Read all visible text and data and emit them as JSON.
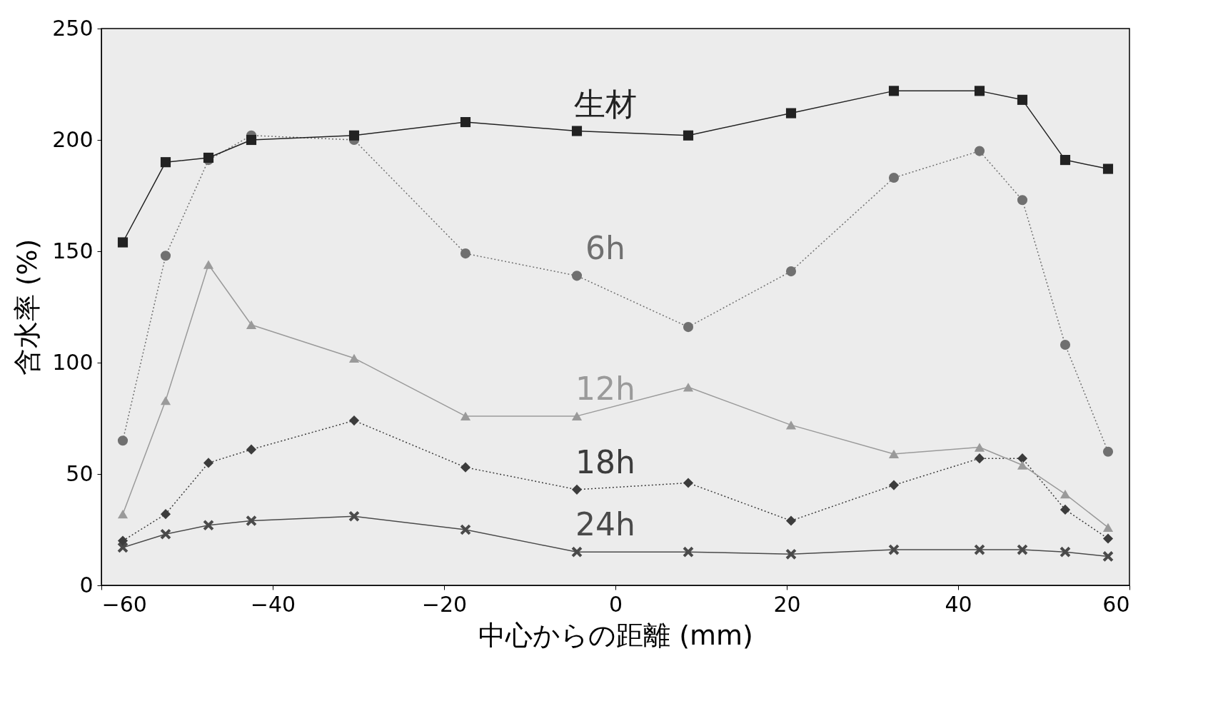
{
  "chart_data": {
    "type": "line",
    "xlabel": "中心からの距離 (mm)",
    "ylabel": "含水率 (%)",
    "x": [
      -57.5,
      -52.5,
      -47.5,
      -42.5,
      -30.5,
      -17.5,
      -4.5,
      8.5,
      20.5,
      32.5,
      42.5,
      47.5,
      52.5,
      57.5
    ],
    "series": [
      {
        "name": "生材",
        "color": "#222222",
        "marker": "square",
        "line_style": "solid",
        "values": [
          154,
          190,
          192,
          200,
          202,
          208,
          204,
          202,
          212,
          222,
          222,
          218,
          191,
          187
        ]
      },
      {
        "name": "6h",
        "color": "#707070",
        "marker": "circle",
        "line_style": "dotted",
        "values": [
          65,
          148,
          191,
          202,
          200,
          149,
          139,
          116,
          141,
          183,
          195,
          173,
          108,
          60
        ]
      },
      {
        "name": "12h",
        "color": "#9a9a9a",
        "marker": "triangle",
        "line_style": "solid",
        "values": [
          32,
          83,
          144,
          117,
          102,
          76,
          76,
          89,
          72,
          59,
          62,
          54,
          41,
          26
        ]
      },
      {
        "name": "18h",
        "color": "#3c3c3c",
        "marker": "diamond",
        "line_style": "dotted",
        "values": [
          20,
          32,
          55,
          61,
          74,
          53,
          43,
          46,
          29,
          45,
          57,
          57,
          34,
          21
        ]
      },
      {
        "name": "24h",
        "color": "#4a4a4a",
        "marker": "cross",
        "line_style": "solid",
        "values": [
          17,
          23,
          27,
          29,
          31,
          25,
          15,
          15,
          14,
          16,
          16,
          16,
          15,
          13
        ]
      }
    ],
    "xlim": [
      -60,
      60
    ],
    "xticks": [
      -60,
      -40,
      -20,
      0,
      20,
      40,
      60
    ],
    "ylim": [
      0,
      250
    ],
    "yticks": [
      0,
      50,
      100,
      150,
      200,
      250
    ],
    "grid": false
  }
}
